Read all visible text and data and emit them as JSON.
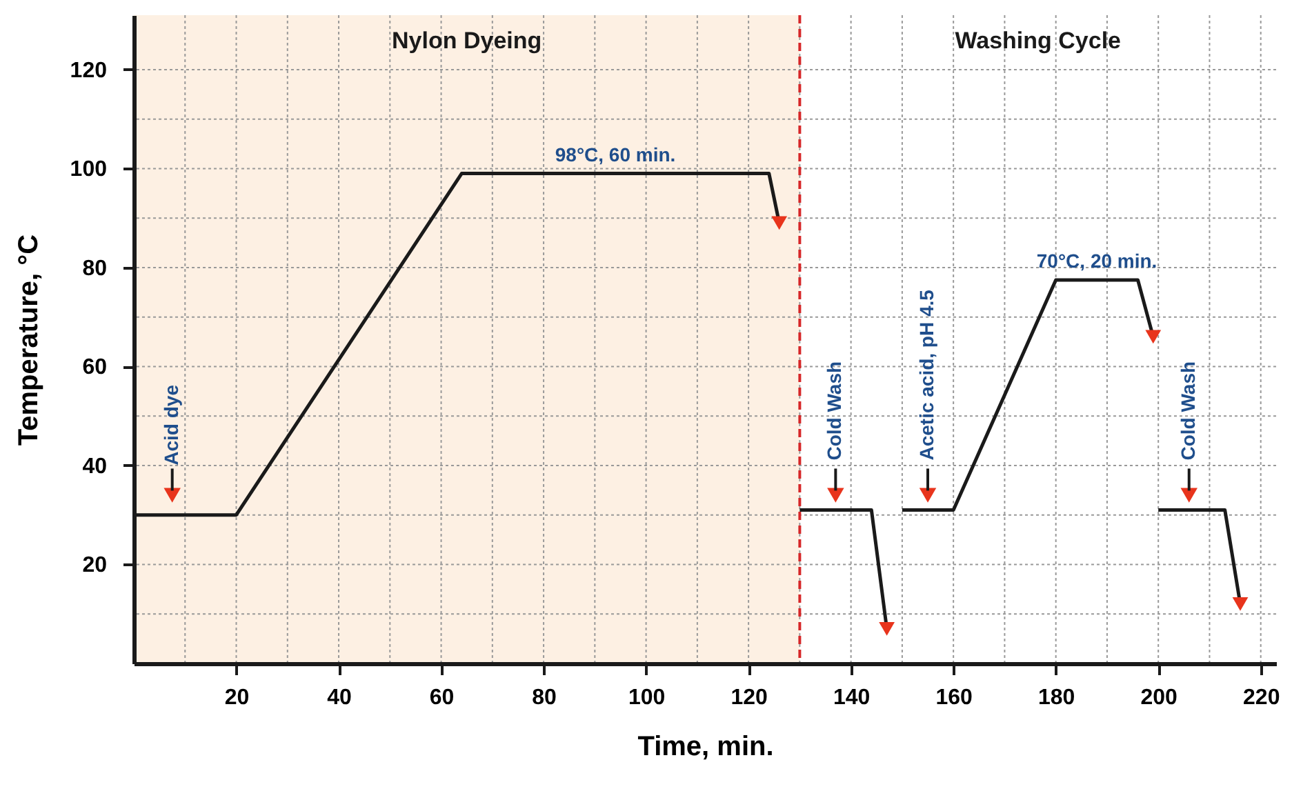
{
  "chart_data": {
    "type": "line",
    "xlabel": "Time, min.",
    "ylabel": "Temperature, °C",
    "xlim": [
      0,
      223
    ],
    "ylim": [
      0,
      131
    ],
    "xticks": [
      {
        "value": 10,
        "label": null
      },
      20,
      {
        "value": 30,
        "label": null
      },
      40,
      {
        "value": 50,
        "label": null
      },
      60,
      {
        "value": 70,
        "label": null
      },
      80,
      {
        "value": 90,
        "label": null
      },
      100,
      {
        "value": 110,
        "label": null
      },
      120,
      {
        "value": 130,
        "label": null
      },
      140,
      {
        "value": 150,
        "label": null
      },
      160,
      {
        "value": 170,
        "label": null
      },
      180,
      {
        "value": 190,
        "label": null
      },
      200,
      {
        "value": 210,
        "label": null
      },
      220
    ],
    "yticks": [
      {
        "value": 10,
        "label": null
      },
      20,
      {
        "value": 30,
        "label": null
      },
      40,
      {
        "value": 50,
        "label": null
      },
      60,
      {
        "value": 70,
        "label": null
      },
      80,
      {
        "value": 90,
        "label": null
      },
      100,
      {
        "value": 110,
        "label": null
      },
      120
    ],
    "grid": true,
    "series": [
      {
        "color": "#1a1a1a",
        "x": [
          0,
          20,
          64,
          124,
          126
        ],
        "values": [
          30,
          30,
          99,
          99,
          89
        ]
      },
      {
        "color": "#1a1a1a",
        "x": [
          130,
          144,
          147
        ],
        "values": [
          31,
          31,
          7
        ]
      },
      {
        "color": "#1a1a1a",
        "x": [
          150,
          160,
          180,
          196,
          199
        ],
        "values": [
          31,
          31,
          77.5,
          77.5,
          66
        ]
      },
      {
        "color": "#1a1a1a",
        "x": [
          200,
          213,
          216
        ],
        "values": [
          31,
          31,
          12
        ]
      },
      {
        "type": "scatter",
        "color": "#e8341c",
        "marker": "triangle",
        "x": [
          7.5,
          137,
          155,
          206
        ],
        "values": [
          34,
          34,
          34,
          34
        ]
      }
    ],
    "bands": [
      {
        "axis": "x",
        "from": 0,
        "to": 130,
        "color": "#fdf0e3"
      }
    ],
    "ref_lines": [
      {
        "axis": "x",
        "value": 130,
        "color": "#d62728",
        "line_style": "dashed"
      }
    ],
    "annotations": [
      "Nylon Dyeing",
      "Washing Cycle",
      {
        "text": "98°C, 60 min.",
        "x": 94,
        "y": 99
      },
      {
        "text": "70°C, 20 min.",
        "x": 188,
        "y": 77.5
      },
      {
        "text": "Acid dye",
        "x": 7.5,
        "y": 30
      },
      {
        "text": "Cold Wash",
        "x": 137,
        "y": 31
      },
      {
        "text": "Acetic acid, pH 4.5",
        "x": 155,
        "y": 31
      },
      {
        "text": "Cold Wash",
        "x": 206,
        "y": 31
      }
    ]
  }
}
